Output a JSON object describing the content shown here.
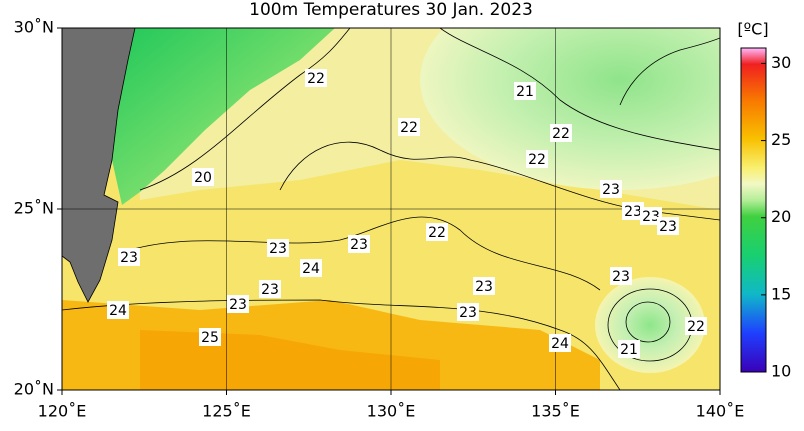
{
  "map": {
    "title": "100m Temperatures  30 Jan. 2023",
    "xticks": [
      {
        "value": 120,
        "label": "120˚E"
      },
      {
        "value": 125,
        "label": "125˚E"
      },
      {
        "value": 130,
        "label": "130˚E"
      },
      {
        "value": 135,
        "label": "135˚E"
      },
      {
        "value": 140,
        "label": "140˚E"
      }
    ],
    "yticks": [
      {
        "value": 20,
        "label": "20˚N"
      },
      {
        "value": 25,
        "label": "25˚N"
      },
      {
        "value": 30,
        "label": "30˚N"
      }
    ],
    "xlim": [
      120,
      140
    ],
    "ylim": [
      20,
      30
    ],
    "contour_labels": [
      22,
      21,
      22,
      22,
      22,
      20,
      23,
      23,
      23,
      23,
      22,
      23,
      23,
      23,
      24,
      23,
      23,
      23,
      23,
      23,
      24,
      22,
      25,
      24,
      21
    ],
    "colorbar": {
      "unit": "[ºC]",
      "lim": [
        10,
        31
      ],
      "ticks": [
        10,
        15,
        20,
        25,
        30
      ]
    }
  }
}
